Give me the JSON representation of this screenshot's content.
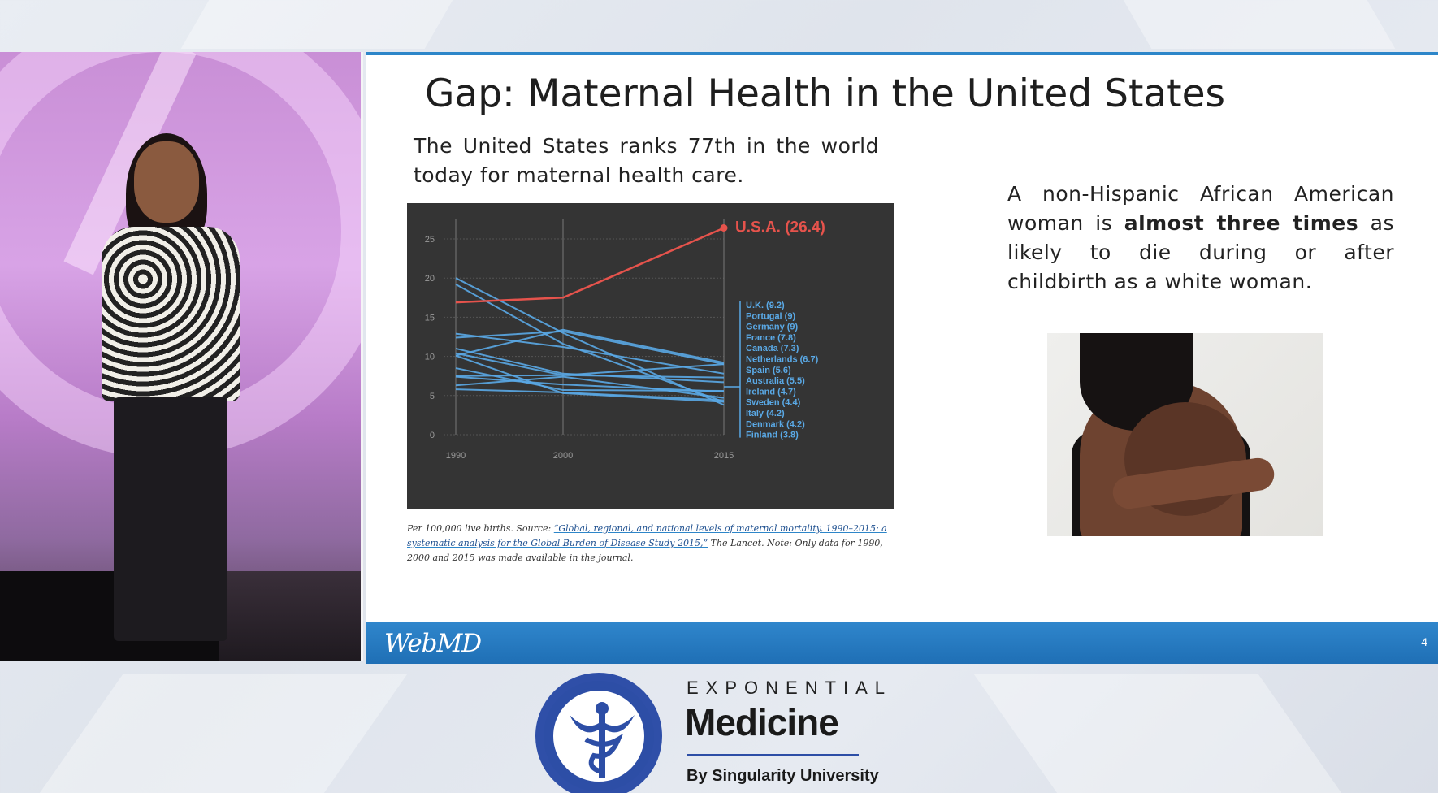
{
  "slide": {
    "title": "Gap: Maternal Health in the United States",
    "left_text": "The United States ranks 77th in the world today for maternal health care.",
    "right_text_pre": "A non-Hispanic African American woman is ",
    "right_text_bold": "almost three times",
    "right_text_post": " as likely to die during or after childbirth as a white woman.",
    "caption_pre": "Per 100,000 live births. Source: ",
    "caption_link": "“Global, regional, and national levels of maternal mortality, 1990–2015: a systematic analysis for the Global Burden of Disease Study 2015,”",
    "caption_post": " The Lancet. Note: Only data for 1990, 2000 and 2015 was made available in the journal.",
    "footer_brand": "WebMD",
    "page_number": "4"
  },
  "logo": {
    "line1": "EXPONENTIAL",
    "line2": "Medicine",
    "line3": "By Singularity University"
  },
  "colors": {
    "usa": "#e6534c",
    "others": "#5aa9e6",
    "chart_bg": "#343434",
    "footer": "#2f86cc"
  },
  "chart_data": {
    "type": "line",
    "x": [
      1990,
      2000,
      2015
    ],
    "ylim": [
      0,
      25
    ],
    "yticks": [
      0,
      5,
      10,
      15,
      20,
      25
    ],
    "xticks": [
      1990,
      2000,
      2015
    ],
    "grid": true,
    "highlight_label": "U.S.A. (26.4)",
    "series": [
      {
        "name": "U.S.A.",
        "label": "U.S.A. (26.4)",
        "values": [
          16.9,
          17.5,
          26.4
        ],
        "highlight": true
      },
      {
        "name": "U.K.",
        "label": "U.K. (9.2)",
        "values": [
          10.1,
          13.4,
          9.2
        ]
      },
      {
        "name": "Portugal",
        "label": "Portugal (9)",
        "values": [
          12.4,
          13.2,
          9.0
        ]
      },
      {
        "name": "Germany",
        "label": "Germany (9)",
        "values": [
          10.4,
          7.6,
          9.0
        ]
      },
      {
        "name": "France",
        "label": "France (7.8)",
        "values": [
          12.9,
          11.2,
          7.8
        ]
      },
      {
        "name": "Canada",
        "label": "Canada (7.3)",
        "values": [
          7.5,
          7.6,
          7.3
        ]
      },
      {
        "name": "Netherlands",
        "label": "Netherlands (6.7)",
        "values": [
          11.0,
          7.8,
          6.7
        ]
      },
      {
        "name": "Spain",
        "label": "Spain (5.6)",
        "values": [
          8.5,
          5.7,
          5.6
        ]
      },
      {
        "name": "Australia",
        "label": "Australia (5.5)",
        "values": [
          7.4,
          6.4,
          5.5
        ]
      },
      {
        "name": "Ireland",
        "label": "Ireland (4.7)",
        "values": [
          6.3,
          7.4,
          4.7
        ]
      },
      {
        "name": "Sweden",
        "label": "Sweden (4.4)",
        "values": [
          5.8,
          5.4,
          4.4
        ]
      },
      {
        "name": "Italy",
        "label": "Italy (4.2)",
        "values": [
          10.1,
          5.3,
          4.2
        ]
      },
      {
        "name": "Denmark",
        "label": "Denmark (4.2)",
        "values": [
          19.2,
          11.6,
          4.2
        ]
      },
      {
        "name": "Finland",
        "label": "Finland (3.8)",
        "values": [
          20.0,
          13.0,
          3.8
        ]
      }
    ]
  }
}
